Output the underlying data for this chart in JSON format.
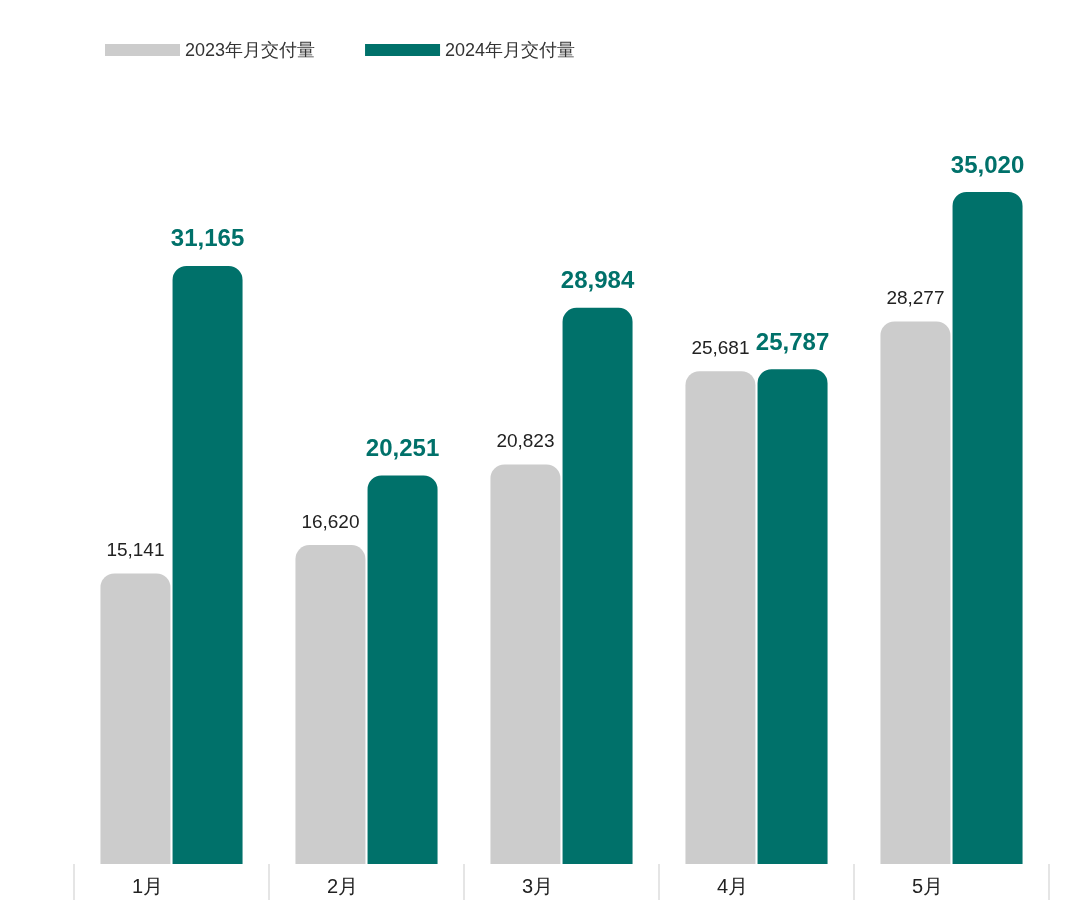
{
  "chart_data": {
    "type": "bar",
    "categories": [
      "1月",
      "2月",
      "3月",
      "4月",
      "5月"
    ],
    "series": [
      {
        "name": "2023年月交付量",
        "color": "#cccccc",
        "values": [
          15141,
          16620,
          20823,
          25681,
          28277
        ],
        "value_labels": [
          "15,141",
          "16,620",
          "20,823",
          "25,681",
          "28,277"
        ]
      },
      {
        "name": "2024年月交付量",
        "color": "#00716a",
        "values": [
          31165,
          20251,
          28984,
          25787,
          35020
        ],
        "value_labels": [
          "31,165",
          "20,251",
          "28,984",
          "25,787",
          "35,020"
        ]
      }
    ],
    "legend": "top left"
  }
}
